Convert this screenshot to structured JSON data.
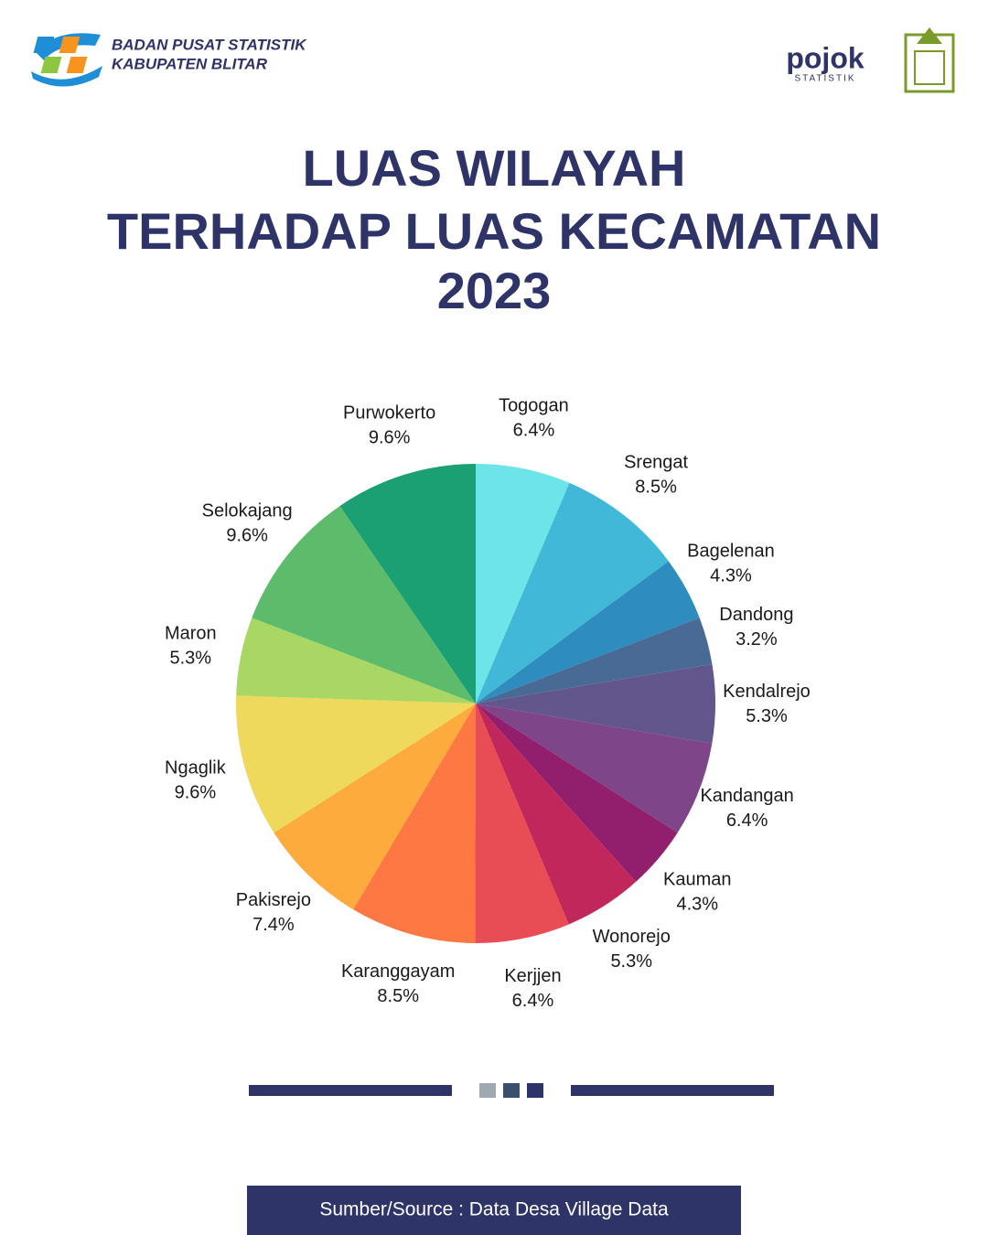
{
  "header": {
    "org": [
      "BADAN PUSAT STATISTIK",
      "KABUPATEN BLITAR"
    ],
    "partner": "pojok",
    "partner_sub": "STATISTIK"
  },
  "title": [
    "LUAS WILAYAH",
    "TERHADAP LUAS KECAMATAN",
    "2023"
  ],
  "chart_data": {
    "type": "pie",
    "categories": [
      "Togogan",
      "Srengat",
      "Bagelenan",
      "Dandong",
      "Kendalrejo",
      "Kandangan",
      "Kauman",
      "Wonorejo",
      "Kerjjen",
      "Karanggayam",
      "Pakisrejo",
      "Ngaglik",
      "Maron",
      "Selokajang",
      "Purwokerto"
    ],
    "values": [
      6.4,
      8.5,
      4.3,
      3.2,
      5.3,
      6.4,
      4.3,
      5.3,
      6.4,
      8.5,
      7.4,
      9.6,
      5.3,
      9.6,
      9.6
    ],
    "value_labels": [
      "6.4%",
      "8.5%",
      "4.3%",
      "3.2%",
      "5.3%",
      "6.4%",
      "4.3%",
      "5.3%",
      "6.4%",
      "8.5%",
      "7.4%",
      "9.6%",
      "5.3%",
      "9.6%",
      "9.6%"
    ],
    "colors": [
      "#6de4e8",
      "#42b8d8",
      "#2e8cbf",
      "#4a6a96",
      "#63568c",
      "#7e4589",
      "#921f6e",
      "#c2275c",
      "#e84c55",
      "#fd7842",
      "#fdab3c",
      "#eed95c",
      "#a8d763",
      "#5dbc6c",
      "#1ba074"
    ]
  },
  "footer": "Sumber/Source : Data Desa Village Data"
}
